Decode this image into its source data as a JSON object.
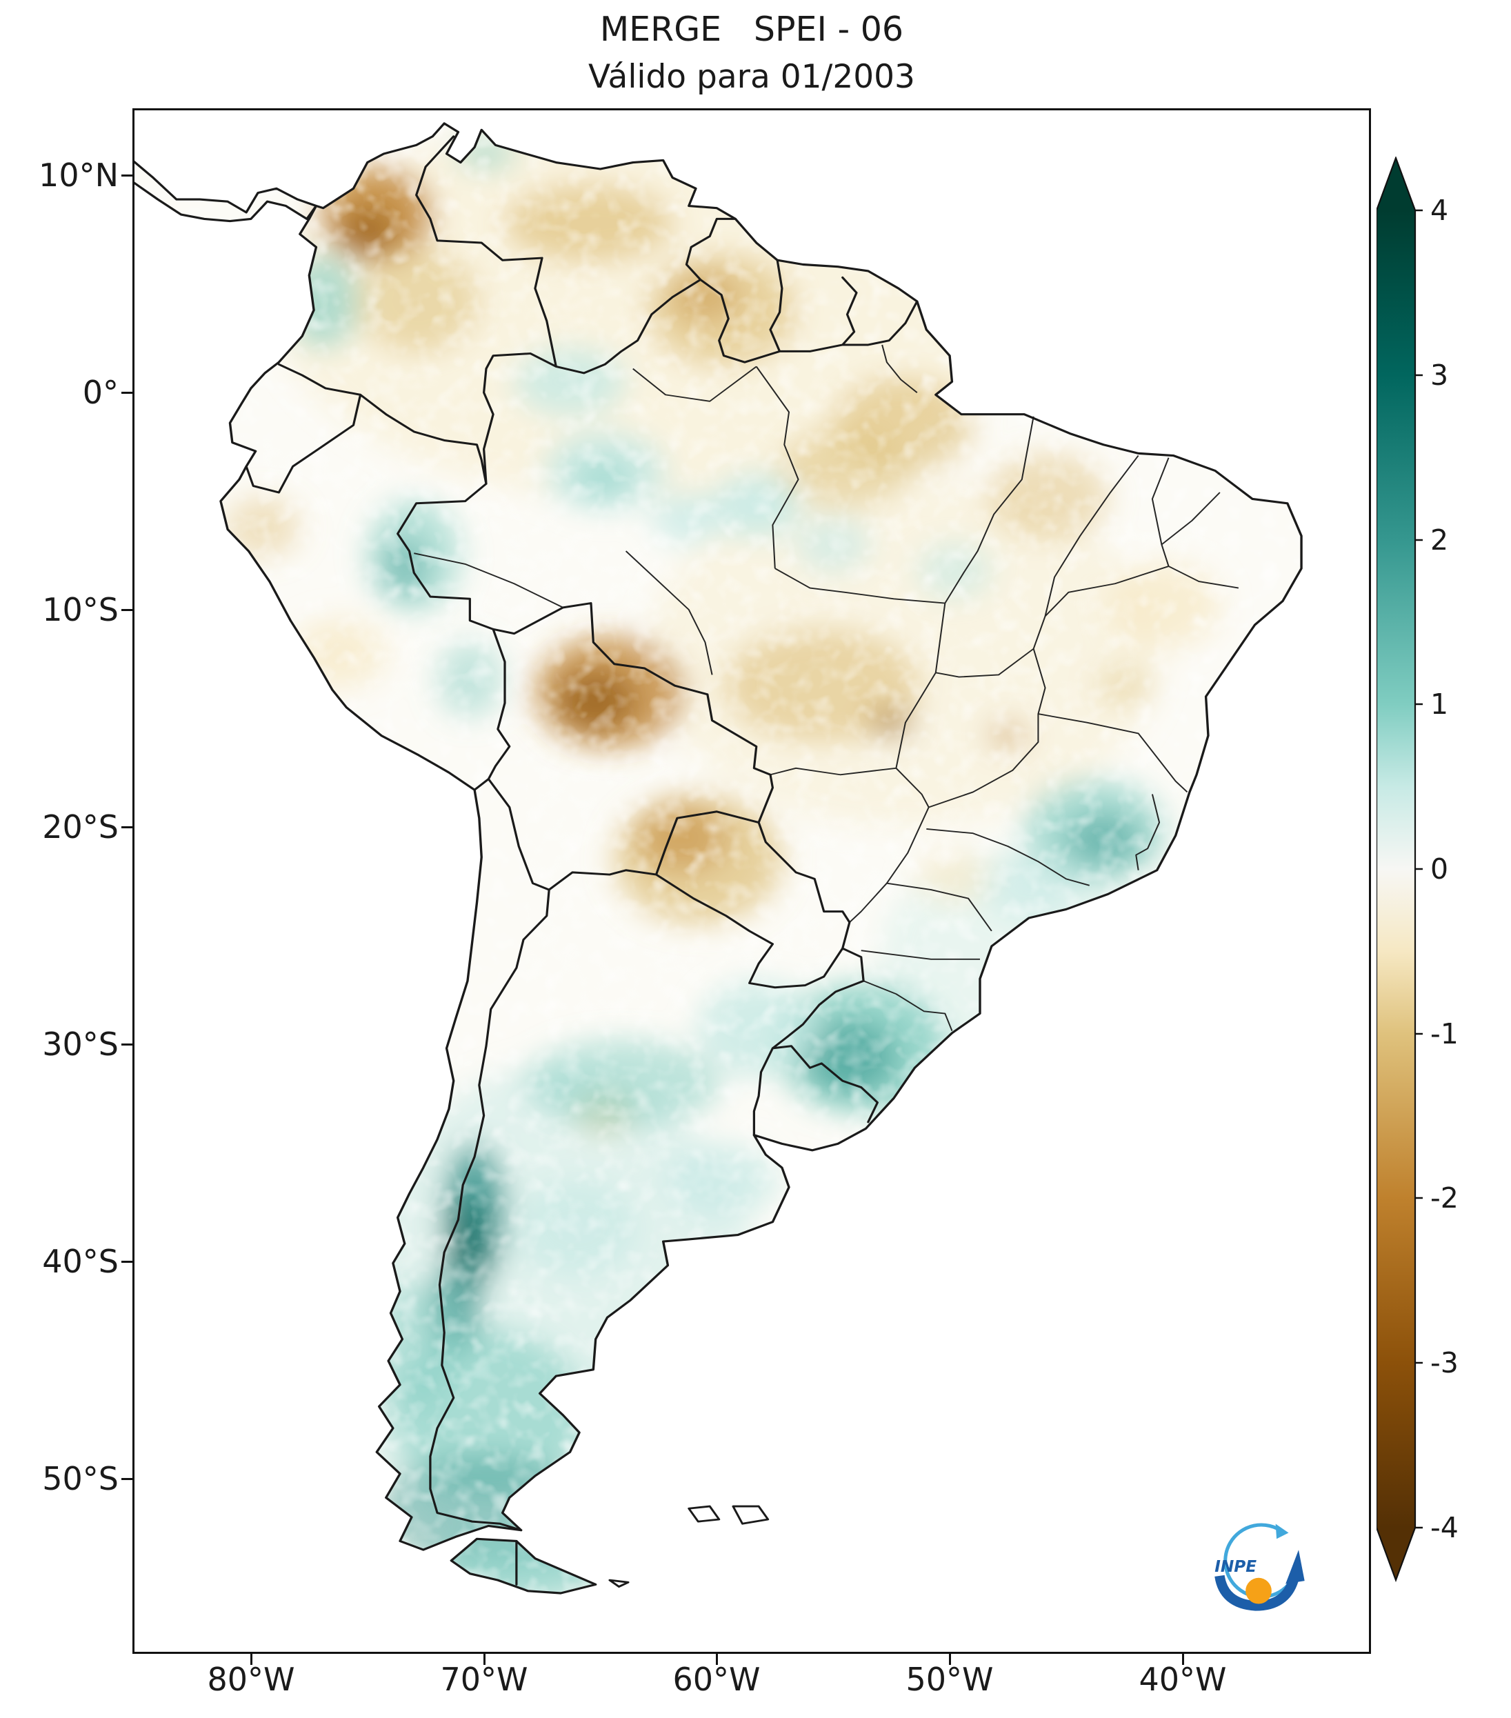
{
  "title": "MERGE   SPEI - 06",
  "subtitle": "Válido para 01/2003",
  "axes": {
    "y_ticks": [
      "10°N",
      "0°",
      "10°S",
      "20°S",
      "30°S",
      "40°S",
      "50°S"
    ],
    "x_ticks": [
      "80°W",
      "70°W",
      "60°W",
      "50°W",
      "40°W"
    ]
  },
  "colorbar": {
    "tick_labels": [
      "4",
      "3",
      "2",
      "1",
      "0",
      "-1",
      "-2",
      "-3",
      "-4"
    ],
    "min": -4,
    "max": 4,
    "stops": [
      {
        "value": 4,
        "color": "#003c30"
      },
      {
        "value": 3,
        "color": "#01665e"
      },
      {
        "value": 2,
        "color": "#35978f"
      },
      {
        "value": 1,
        "color": "#80cdc1"
      },
      {
        "value": 0.5,
        "color": "#c7eae5"
      },
      {
        "value": 0,
        "color": "#f7f7f4"
      },
      {
        "value": -0.5,
        "color": "#f6e8c3"
      },
      {
        "value": -1,
        "color": "#dfc27d"
      },
      {
        "value": -2,
        "color": "#bf812d"
      },
      {
        "value": -3,
        "color": "#8c510a"
      },
      {
        "value": -4,
        "color": "#543005"
      }
    ]
  },
  "logo": {
    "text": "INPE"
  },
  "palette": {
    "teal1": "#c7eae5",
    "teal2": "#80cdc1",
    "teal3": "#35978f",
    "teal4": "#01665e",
    "tan1": "#f6e8c3",
    "tan2": "#dfc27d",
    "brown2": "#bf812d",
    "brown3": "#8c510a",
    "brown4": "#543005",
    "land_base": "#fcfbf6",
    "border": "#1a1a1a",
    "logo_blue": "#1c5ea9",
    "logo_lightblue": "#41a8dc",
    "logo_orange": "#f6a117"
  },
  "chart_data": {
    "type": "heatmap",
    "title": "MERGE   SPEI - 06",
    "subtitle": "Válido para 01/2003",
    "variable": "SPEI-06",
    "valid_for": "01/2003",
    "region": "South America",
    "xlabel_ticks": [
      "80°W",
      "70°W",
      "60°W",
      "50°W",
      "40°W"
    ],
    "ylabel_ticks": [
      "10°N",
      "0°",
      "10°S",
      "20°S",
      "30°S",
      "40°S",
      "50°S"
    ],
    "colorbar_range": [
      -4,
      4
    ],
    "colorbar_ticks": [
      4,
      3,
      2,
      1,
      0,
      -1,
      -2,
      -3,
      -4
    ],
    "palette_description": "brown (dry, negative) to white (neutral) to teal (wet, positive), BrBG-like",
    "anomalies": [
      {
        "region": "northern Colombia / northwest Venezuela",
        "sign": "negative",
        "approx_spei": -2
      },
      {
        "region": "Venezuelan llanos and Guyana / Roraima",
        "sign": "negative",
        "approx_spei": -1
      },
      {
        "region": "eastern Amazonia (Pará / Amapá / Maranhão)",
        "sign": "negative",
        "approx_spei": -1
      },
      {
        "region": "Rondônia / northern Bolivia",
        "sign": "negative",
        "approx_spei": -2
      },
      {
        "region": "central Brazil (Mato Grosso / Goiás)",
        "sign": "negative",
        "approx_spei": -1
      },
      {
        "region": "Paraguay / Gran Chaco",
        "sign": "negative",
        "approx_spei": -1.5
      },
      {
        "region": "western Amazon / eastern Peru",
        "sign": "positive",
        "approx_spei": 1
      },
      {
        "region": "southeastern Brazil (Minas Gerais / Rio de Janeiro)",
        "sign": "positive",
        "approx_spei": 1.5
      },
      {
        "region": "Rio Grande do Sul / Uruguay",
        "sign": "positive",
        "approx_spei": 2
      },
      {
        "region": "central Argentina pampas",
        "sign": "positive",
        "approx_spei": 1
      },
      {
        "region": "northern Patagonia Andes (Neuquén)",
        "sign": "positive",
        "approx_spei": 3
      },
      {
        "region": "southern Patagonia / Tierra del Fuego",
        "sign": "positive",
        "approx_spei": 2
      }
    ]
  },
  "map_field": {
    "blobs": [
      [
        -63,
        -4,
        16,
        9,
        0.45,
        "tan1"
      ],
      [
        -52,
        12,
        11,
        8,
        0.4,
        "tan1"
      ],
      [
        -67,
        43,
        9,
        12,
        0.5,
        "teal1"
      ],
      [
        -47,
        26,
        6,
        5,
        0.35,
        "teal1"
      ],
      [
        -74.6,
        -8.2,
        2.4,
        2.2,
        0.8,
        "brown2"
      ],
      [
        -75,
        -7.4,
        1.2,
        1.1,
        0.6,
        "brown3"
      ],
      [
        -65.5,
        -7.8,
        3.6,
        1.8,
        0.7,
        "tan2"
      ],
      [
        -72.8,
        -4.2,
        2.6,
        2.4,
        0.55,
        "tan2"
      ],
      [
        -59.8,
        -3.8,
        3.2,
        2.6,
        0.65,
        "tan2"
      ],
      [
        -60.5,
        -4.4,
        1.5,
        1.2,
        0.4,
        "brown2"
      ],
      [
        -52,
        1.5,
        3,
        2.2,
        0.65,
        "tan2"
      ],
      [
        -54.5,
        3.5,
        2.8,
        1.8,
        0.55,
        "tan2"
      ],
      [
        -45.8,
        4.8,
        2.6,
        2,
        0.5,
        "tan2"
      ],
      [
        -64.6,
        13.8,
        3.2,
        2.6,
        0.75,
        "brown2"
      ],
      [
        -65.2,
        14.2,
        1.7,
        1.4,
        0.65,
        "brown3"
      ],
      [
        -55.5,
        13.5,
        4.2,
        2.6,
        0.6,
        "tan2"
      ],
      [
        -60.8,
        21.5,
        3.6,
        3,
        0.75,
        "tan2"
      ],
      [
        -61.5,
        20.5,
        2,
        1.6,
        0.5,
        "brown2"
      ],
      [
        -40.8,
        9.8,
        2.4,
        2,
        0.7,
        "tan1"
      ],
      [
        -42.5,
        13.5,
        1.2,
        1,
        0.4,
        "tan2"
      ],
      [
        -76.2,
        12,
        2,
        1.6,
        0.7,
        "tan1"
      ],
      [
        -79.5,
        6.2,
        1.6,
        1.4,
        0.45,
        "tan2"
      ],
      [
        -52.5,
        15.2,
        0.9,
        0.8,
        0.45,
        "brown3"
      ],
      [
        -47.5,
        15.8,
        0.8,
        0.7,
        0.45,
        "brown2"
      ],
      [
        -49.8,
        22.3,
        1.6,
        1.2,
        0.6,
        "tan1"
      ],
      [
        -64.8,
        33.2,
        1.3,
        1,
        0.45,
        "tan2"
      ],
      [
        -76.9,
        -4.2,
        1.5,
        2.2,
        0.6,
        "teal2"
      ],
      [
        -69.9,
        -11,
        1.3,
        0.8,
        0.5,
        "teal2"
      ],
      [
        -66.3,
        -0.5,
        2.4,
        1.6,
        0.8,
        "teal1"
      ],
      [
        -64.8,
        3.6,
        2.6,
        1.8,
        0.85,
        "teal1"
      ],
      [
        -64.9,
        4,
        1.2,
        0.9,
        0.5,
        "teal2"
      ],
      [
        -73,
        7.5,
        2,
        2.6,
        0.55,
        "teal2"
      ],
      [
        -73.4,
        8,
        1,
        1.4,
        0.4,
        "teal3"
      ],
      [
        -70.6,
        13.2,
        1.4,
        1.8,
        0.45,
        "teal2"
      ],
      [
        -58.3,
        5.2,
        1.9,
        1.5,
        0.85,
        "teal1"
      ],
      [
        -61.3,
        5.8,
        1.5,
        1.2,
        0.75,
        "teal1"
      ],
      [
        -55,
        7,
        1.6,
        1.3,
        0.65,
        "teal1"
      ],
      [
        -49.8,
        8.2,
        1.6,
        1.3,
        0.6,
        "teal1"
      ],
      [
        -43.8,
        20.2,
        3,
        2.4,
        0.65,
        "teal2"
      ],
      [
        -43.4,
        20.6,
        1.6,
        1.2,
        0.5,
        "teal3"
      ],
      [
        -46.5,
        22.8,
        2,
        1.5,
        0.6,
        "teal1"
      ],
      [
        -53.8,
        30.2,
        3.6,
        3,
        0.8,
        "teal2"
      ],
      [
        -54.3,
        30.6,
        2,
        1.7,
        0.6,
        "teal3"
      ],
      [
        -58.2,
        29.3,
        2.6,
        2.2,
        0.8,
        "teal1"
      ],
      [
        -64,
        31.8,
        4.2,
        2,
        0.5,
        "teal2"
      ],
      [
        -59.8,
        36.3,
        2.4,
        1.7,
        0.75,
        "teal1"
      ],
      [
        -66,
        38.5,
        2.6,
        2.2,
        0.7,
        "teal1"
      ],
      [
        -70.4,
        37.8,
        1.3,
        3.2,
        0.85,
        "teal3"
      ],
      [
        -70.7,
        39.3,
        0.85,
        2.4,
        0.8,
        "teal4"
      ],
      [
        -71.2,
        42.3,
        1.1,
        2.2,
        0.7,
        "teal3"
      ],
      [
        -69.8,
        47,
        4.2,
        3.8,
        0.6,
        "teal2"
      ],
      [
        -70,
        51.5,
        4.5,
        2.6,
        0.45,
        "teal3"
      ],
      [
        -68.5,
        54.2,
        3.5,
        1.6,
        0.65,
        "teal2"
      ],
      [
        -73,
        44,
        1.6,
        3,
        0.45,
        "teal2"
      ]
    ]
  }
}
